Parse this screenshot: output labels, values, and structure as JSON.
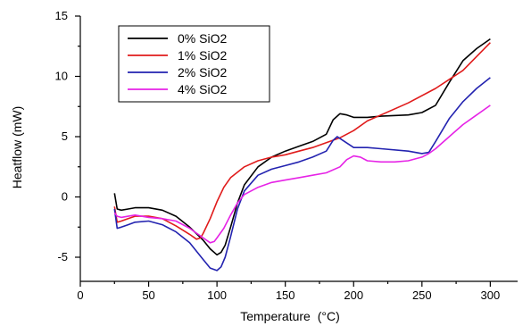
{
  "chart_data": {
    "type": "line",
    "title": "",
    "xlabel": "Temperature",
    "xlabel_unit": "(°C)",
    "ylabel": "Heatflow (mW)",
    "xlim": [
      0,
      320
    ],
    "ylim": [
      -7,
      15
    ],
    "x_ticks": [
      0,
      50,
      100,
      150,
      200,
      250,
      300
    ],
    "y_ticks": [
      -5,
      0,
      5,
      10,
      15
    ],
    "grid": false,
    "legend_position": "top-left",
    "series": [
      {
        "name": "0% SiO2",
        "color": "#000000",
        "points": [
          [
            25,
            0.3
          ],
          [
            27,
            -1.0
          ],
          [
            30,
            -1.1
          ],
          [
            35,
            -1.0
          ],
          [
            40,
            -0.9
          ],
          [
            50,
            -0.9
          ],
          [
            60,
            -1.1
          ],
          [
            70,
            -1.6
          ],
          [
            80,
            -2.5
          ],
          [
            90,
            -3.6
          ],
          [
            95,
            -4.3
          ],
          [
            100,
            -4.8
          ],
          [
            103,
            -4.6
          ],
          [
            106,
            -4.0
          ],
          [
            110,
            -2.5
          ],
          [
            115,
            -0.5
          ],
          [
            120,
            1.0
          ],
          [
            130,
            2.5
          ],
          [
            140,
            3.3
          ],
          [
            150,
            3.8
          ],
          [
            160,
            4.2
          ],
          [
            170,
            4.6
          ],
          [
            180,
            5.2
          ],
          [
            185,
            6.4
          ],
          [
            190,
            6.9
          ],
          [
            195,
            6.8
          ],
          [
            200,
            6.6
          ],
          [
            210,
            6.6
          ],
          [
            220,
            6.7
          ],
          [
            240,
            6.8
          ],
          [
            250,
            7.0
          ],
          [
            260,
            7.6
          ],
          [
            270,
            9.5
          ],
          [
            280,
            11.3
          ],
          [
            290,
            12.3
          ],
          [
            300,
            13.1
          ]
        ]
      },
      {
        "name": "1% SiO2",
        "color": "#e01b1b",
        "points": [
          [
            25,
            -0.8
          ],
          [
            27,
            -2.1
          ],
          [
            30,
            -2.0
          ],
          [
            35,
            -1.8
          ],
          [
            40,
            -1.6
          ],
          [
            50,
            -1.6
          ],
          [
            60,
            -1.8
          ],
          [
            70,
            -2.4
          ],
          [
            80,
            -3.1
          ],
          [
            85,
            -3.5
          ],
          [
            88,
            -3.4
          ],
          [
            90,
            -3.0
          ],
          [
            95,
            -1.8
          ],
          [
            100,
            -0.4
          ],
          [
            105,
            0.8
          ],
          [
            110,
            1.6
          ],
          [
            120,
            2.5
          ],
          [
            130,
            3.0
          ],
          [
            140,
            3.3
          ],
          [
            150,
            3.5
          ],
          [
            160,
            3.8
          ],
          [
            170,
            4.1
          ],
          [
            180,
            4.5
          ],
          [
            190,
            4.9
          ],
          [
            200,
            5.5
          ],
          [
            210,
            6.3
          ],
          [
            220,
            6.8
          ],
          [
            240,
            7.8
          ],
          [
            260,
            9.0
          ],
          [
            280,
            10.5
          ],
          [
            300,
            12.8
          ]
        ]
      },
      {
        "name": "2% SiO2",
        "color": "#2323b0",
        "points": [
          [
            25,
            -1.0
          ],
          [
            27,
            -2.6
          ],
          [
            30,
            -2.5
          ],
          [
            35,
            -2.3
          ],
          [
            40,
            -2.1
          ],
          [
            50,
            -2.0
          ],
          [
            60,
            -2.3
          ],
          [
            70,
            -2.9
          ],
          [
            80,
            -3.8
          ],
          [
            90,
            -5.2
          ],
          [
            95,
            -5.9
          ],
          [
            100,
            -6.1
          ],
          [
            103,
            -5.8
          ],
          [
            106,
            -5.0
          ],
          [
            110,
            -3.3
          ],
          [
            115,
            -1.0
          ],
          [
            120,
            0.5
          ],
          [
            130,
            1.8
          ],
          [
            140,
            2.3
          ],
          [
            150,
            2.6
          ],
          [
            160,
            2.9
          ],
          [
            170,
            3.3
          ],
          [
            180,
            3.8
          ],
          [
            185,
            4.7
          ],
          [
            188,
            5.0
          ],
          [
            192,
            4.7
          ],
          [
            200,
            4.1
          ],
          [
            210,
            4.1
          ],
          [
            220,
            4.0
          ],
          [
            240,
            3.8
          ],
          [
            250,
            3.6
          ],
          [
            255,
            3.7
          ],
          [
            260,
            4.6
          ],
          [
            270,
            6.5
          ],
          [
            280,
            7.9
          ],
          [
            290,
            9.0
          ],
          [
            300,
            9.9
          ]
        ]
      },
      {
        "name": "4% SiO2",
        "color": "#e623e6",
        "points": [
          [
            25,
            -1.3
          ],
          [
            27,
            -1.6
          ],
          [
            30,
            -1.7
          ],
          [
            35,
            -1.6
          ],
          [
            40,
            -1.5
          ],
          [
            50,
            -1.7
          ],
          [
            60,
            -1.8
          ],
          [
            70,
            -2.0
          ],
          [
            80,
            -2.6
          ],
          [
            90,
            -3.4
          ],
          [
            95,
            -3.8
          ],
          [
            98,
            -3.7
          ],
          [
            100,
            -3.4
          ],
          [
            105,
            -2.6
          ],
          [
            110,
            -1.5
          ],
          [
            115,
            -0.5
          ],
          [
            120,
            0.2
          ],
          [
            130,
            0.8
          ],
          [
            140,
            1.2
          ],
          [
            150,
            1.4
          ],
          [
            160,
            1.6
          ],
          [
            170,
            1.8
          ],
          [
            180,
            2.0
          ],
          [
            190,
            2.5
          ],
          [
            195,
            3.1
          ],
          [
            200,
            3.4
          ],
          [
            205,
            3.3
          ],
          [
            210,
            3.0
          ],
          [
            220,
            2.9
          ],
          [
            230,
            2.9
          ],
          [
            240,
            3.0
          ],
          [
            250,
            3.3
          ],
          [
            255,
            3.6
          ],
          [
            260,
            4.0
          ],
          [
            270,
            5.0
          ],
          [
            280,
            6.0
          ],
          [
            290,
            6.8
          ],
          [
            300,
            7.6
          ]
        ]
      }
    ]
  }
}
